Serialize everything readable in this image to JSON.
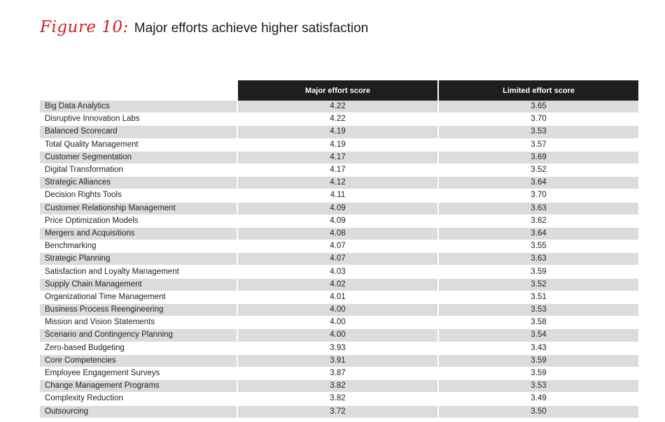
{
  "figure": {
    "label": "Figure 10:",
    "title": "Major efforts achieve higher satisfaction"
  },
  "colors": {
    "accent": "#d41f1f",
    "header_bg": "#1e1e1e",
    "stripe": "#dcdcdc"
  },
  "chart_data": {
    "type": "table",
    "title": "Major efforts achieve higher satisfaction",
    "columns": [
      "",
      "Major effort score",
      "Limited effort score"
    ],
    "rows": [
      [
        "Big Data Analytics",
        "4.22",
        "3.65"
      ],
      [
        "Disruptive Innovation Labs",
        "4.22",
        "3.70"
      ],
      [
        "Balanced Scorecard",
        "4.19",
        "3.53"
      ],
      [
        "Total Quality Management",
        "4.19",
        "3.57"
      ],
      [
        "Customer Segmentation",
        "4.17",
        "3.69"
      ],
      [
        "Digital Transformation",
        "4.17",
        "3.52"
      ],
      [
        "Strategic Alliances",
        "4.12",
        "3.64"
      ],
      [
        "Decision Rights Tools",
        "4.11",
        "3.70"
      ],
      [
        "Customer Relationship Management",
        "4.09",
        "3.63"
      ],
      [
        "Price Optimization Models",
        "4.09",
        "3.62"
      ],
      [
        "Mergers and Acquisitions",
        "4.08",
        "3.64"
      ],
      [
        "Benchmarking",
        "4.07",
        "3.55"
      ],
      [
        "Strategic Planning",
        "4.07",
        "3.63"
      ],
      [
        "Satisfaction and Loyalty Management",
        "4.03",
        "3.59"
      ],
      [
        "Supply Chain Management",
        "4.02",
        "3.52"
      ],
      [
        "Organizational Time Management",
        "4.01",
        "3.51"
      ],
      [
        "Business Process Reengineering",
        "4.00",
        "3.53"
      ],
      [
        "Mission and Vision Statements",
        "4.00",
        "3.58"
      ],
      [
        "Scenario and Contingency Planning",
        "4.00",
        "3.54"
      ],
      [
        "Zero-based Budgeting",
        "3.93",
        "3.43"
      ],
      [
        "Core Competencies",
        "3.91",
        "3.59"
      ],
      [
        "Employee Engagement Surveys",
        "3.87",
        "3.59"
      ],
      [
        "Change Management Programs",
        "3.82",
        "3.53"
      ],
      [
        "Complexity Reduction",
        "3.82",
        "3.49"
      ],
      [
        "Outsourcing",
        "3.72",
        "3.50"
      ]
    ]
  }
}
